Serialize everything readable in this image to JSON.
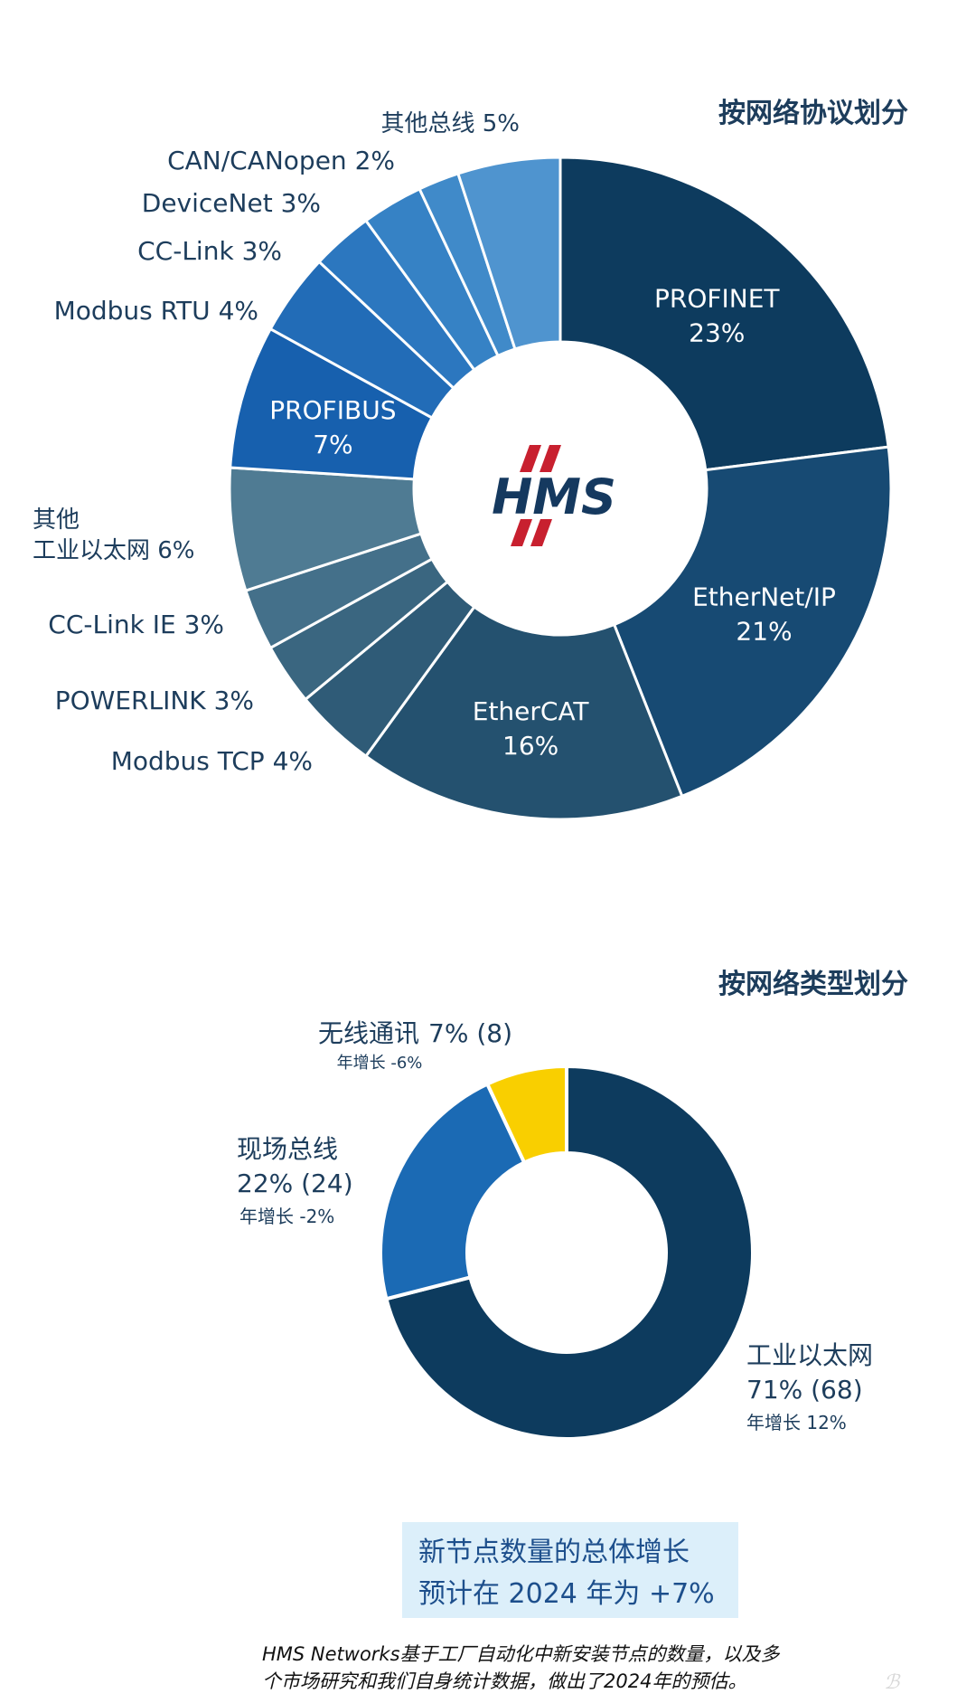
{
  "colors": {
    "label_text": "#1d3d5c",
    "note_bg": "#dceffa",
    "note_text": "#1d4f8c",
    "logo_red": "#c8202f",
    "logo_blue": "#15395f"
  },
  "logo": {
    "text": "HMS"
  },
  "chart_data": [
    {
      "type": "pie",
      "donut": true,
      "title": "按网络协议划分",
      "slices": [
        {
          "label": "PROFINET",
          "value": 23,
          "value_text": "23%",
          "color": "#0d3b5e",
          "label_position": "inside"
        },
        {
          "label": "EtherNet/IP",
          "value": 21,
          "value_text": "21%",
          "color": "#174a73",
          "label_position": "inside"
        },
        {
          "label": "EtherCAT",
          "value": 16,
          "value_text": "16%",
          "color": "#24516f",
          "label_position": "inside"
        },
        {
          "label": "Modbus TCP 4%",
          "value": 4,
          "color": "#2f5b77",
          "label_position": "outside"
        },
        {
          "label": "POWERLINK 3%",
          "value": 3,
          "color": "#3a6680",
          "label_position": "outside"
        },
        {
          "label": "CC-Link IE 3%",
          "value": 3,
          "color": "#44708a",
          "label_position": "outside"
        },
        {
          "label_lines": [
            "其他",
            "工业以太网 6%"
          ],
          "value": 6,
          "color": "#4f7b93",
          "label_position": "outside"
        },
        {
          "label": "PROFIBUS",
          "value": 7,
          "value_text": "7%",
          "color": "#1760ae",
          "label_position": "inside"
        },
        {
          "label": "Modbus RTU 4%",
          "value": 4,
          "color": "#226cb7",
          "label_position": "outside"
        },
        {
          "label": "CC-Link 3%",
          "value": 3,
          "color": "#2c77bf",
          "label_position": "outside"
        },
        {
          "label": "DeviceNet 3%",
          "value": 3,
          "color": "#3682c5",
          "label_position": "outside"
        },
        {
          "label": "CAN/CANopen 2%",
          "value": 2,
          "color": "#408ac9",
          "label_position": "outside"
        },
        {
          "label": "其他总线 5%",
          "value": 5,
          "color": "#4f94cf",
          "label_position": "outside"
        }
      ]
    },
    {
      "type": "pie",
      "donut": true,
      "title": "按网络类型划分",
      "slices": [
        {
          "name": "工业以太网",
          "value": 71,
          "value_text": "71% (68)",
          "growth": "年增长 12%",
          "color": "#0d3b5e"
        },
        {
          "name": "现场总线",
          "value": 22,
          "value_text": "22% (24)",
          "growth": "年增长 -2%",
          "color": "#1b6ab4"
        },
        {
          "name": "无线通讯",
          "value": 7,
          "value_text": "7% (8)",
          "growth": "年增长 -6%",
          "color": "#f9cf00"
        }
      ]
    }
  ],
  "note": {
    "line1": "新节点数量的总体增长",
    "line2": "预计在 2024 年为 +7%"
  },
  "footnote": {
    "line1": "HMS Networks基于工厂自动化中新安装节点的数量，以及多",
    "line2": "个市场研究和我们自身统计数据，做出了2024年的预估。"
  }
}
